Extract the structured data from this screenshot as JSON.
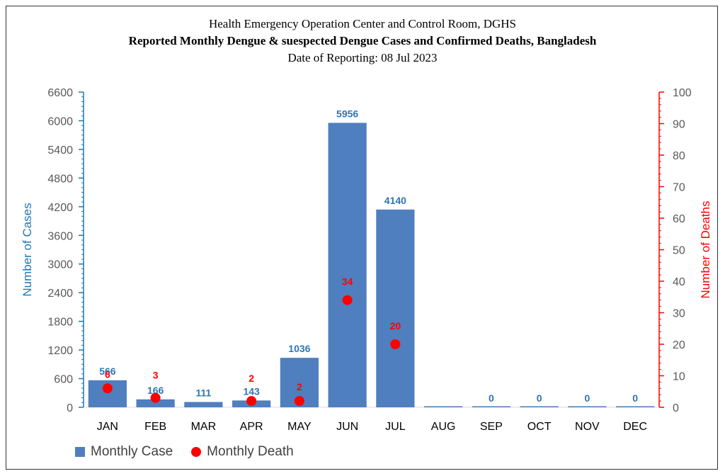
{
  "header": {
    "line1": "Health Emergency Operation Center and Control Room, DGHS",
    "line2": "Reported Monthly Dengue & suespected Dengue Cases and Confirmed Deaths, Bangladesh",
    "line3": "Date of Reporting: 08 Jul 2023"
  },
  "legend": {
    "cases_label": "Monthly Case",
    "deaths_label": "Monthly Death"
  },
  "colors": {
    "bars": "#4f7fbe",
    "left_axis": "#1f77b4",
    "right_axis": "#ff0000",
    "case_labels": "#2e75b6",
    "death_labels": "#ff0000"
  },
  "chart_data": {
    "type": "bar",
    "title": "Reported Monthly Dengue & suespected Dengue Cases and Confirmed Deaths, Bangladesh",
    "categories": [
      "JAN",
      "FEB",
      "MAR",
      "APR",
      "MAY",
      "JUN",
      "JUL",
      "AUG",
      "SEP",
      "OCT",
      "NOV",
      "DEC"
    ],
    "series": [
      {
        "name": "Monthly Case",
        "type": "bar",
        "axis": "left",
        "values": [
          566,
          166,
          111,
          143,
          1036,
          5956,
          4140,
          0,
          0,
          0,
          0,
          0
        ],
        "labels": [
          "566",
          "166",
          "111",
          "143",
          "1036",
          "5956",
          "4140",
          "",
          "0",
          "0",
          "0",
          "0"
        ]
      },
      {
        "name": "Monthly Death",
        "type": "scatter",
        "axis": "right",
        "values": [
          6,
          3,
          null,
          2,
          2,
          34,
          20,
          null,
          null,
          null,
          null,
          null
        ],
        "labels": [
          "6",
          "3",
          "",
          "2",
          "2",
          "34",
          "20",
          "",
          "",
          "",
          "",
          ""
        ]
      }
    ],
    "ylabel": "Number of Cases",
    "y2label": "Number of Deaths",
    "ylim": [
      0,
      6600
    ],
    "y2lim": [
      0,
      100
    ],
    "yticks": [
      0,
      600,
      1200,
      1800,
      2400,
      3000,
      3600,
      4200,
      4800,
      5400,
      6000,
      6600
    ],
    "y2ticks": [
      0,
      10,
      20,
      30,
      40,
      50,
      60,
      70,
      80,
      90,
      100
    ],
    "grid": false,
    "legend_position": "bottom-left"
  }
}
